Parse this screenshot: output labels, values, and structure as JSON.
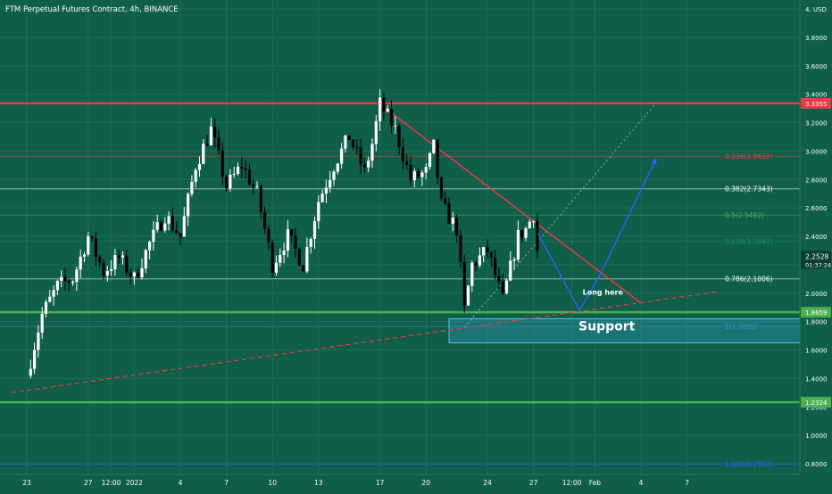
{
  "header": {
    "title": "FTM Perpetual Futures Contract, 4h, BINANCE"
  },
  "chart_data": {
    "type": "candlestick",
    "currency": "USD",
    "ylim": [
      0.68,
      4.08
    ],
    "yticks": [
      4.0,
      3.8,
      3.6,
      3.4,
      3.2,
      3.0,
      2.8,
      2.6,
      2.4,
      2.2,
      2.0,
      1.8,
      1.6,
      1.4,
      1.2,
      1.0,
      0.8
    ],
    "ytick_labels": [
      "4. USD",
      "3.8000",
      "3.6000",
      "3.4000",
      "3.2000",
      "3.0000",
      "2.8000",
      "2.6000",
      "2.4000",
      "2.2000",
      "2.0000",
      "1.8000",
      "1.6000",
      "1.4000",
      "1.2000",
      "1.0000",
      "0.8000"
    ],
    "xticks": [
      {
        "pos": 0,
        "label": "23"
      },
      {
        "pos": 4,
        "label": "27"
      },
      {
        "pos": 5.5,
        "label": "12:00"
      },
      {
        "pos": 7,
        "label": "2022"
      },
      {
        "pos": 10,
        "label": "4"
      },
      {
        "pos": 13,
        "label": "7"
      },
      {
        "pos": 16,
        "label": "10"
      },
      {
        "pos": 19,
        "label": "13"
      },
      {
        "pos": 23,
        "label": "17"
      },
      {
        "pos": 26,
        "label": "20"
      },
      {
        "pos": 30,
        "label": "24"
      },
      {
        "pos": 33,
        "label": "27"
      },
      {
        "pos": 35.5,
        "label": "12:00"
      },
      {
        "pos": 37,
        "label": "Feb"
      },
      {
        "pos": 40,
        "label": "4"
      },
      {
        "pos": 43,
        "label": "7"
      }
    ],
    "price_path": [
      [
        0,
        1.42
      ],
      [
        1,
        1.85
      ],
      [
        2,
        2.05
      ],
      [
        3,
        2.1
      ],
      [
        4,
        2.4
      ],
      [
        5,
        2.15
      ],
      [
        6,
        2.25
      ],
      [
        7,
        2.1
      ],
      [
        8,
        2.35
      ],
      [
        9,
        2.55
      ],
      [
        10,
        2.4
      ],
      [
        11,
        2.9
      ],
      [
        12,
        3.15
      ],
      [
        13,
        2.75
      ],
      [
        14,
        2.9
      ],
      [
        15,
        2.7
      ],
      [
        16,
        2.2
      ],
      [
        17,
        2.4
      ],
      [
        18,
        2.2
      ],
      [
        19,
        2.65
      ],
      [
        20,
        2.9
      ],
      [
        21,
        3.1
      ],
      [
        22,
        2.85
      ],
      [
        22.5,
        3.05
      ],
      [
        23,
        3.33
      ],
      [
        24,
        3.15
      ],
      [
        25,
        2.8
      ],
      [
        26,
        2.85
      ],
      [
        26.5,
        3.03
      ],
      [
        27,
        2.62
      ],
      [
        28,
        2.45
      ],
      [
        28.5,
        1.88
      ],
      [
        29,
        2.2
      ],
      [
        30,
        2.3
      ],
      [
        31,
        1.95
      ],
      [
        32,
        2.4
      ],
      [
        32.5,
        2.45
      ],
      [
        33,
        2.56
      ],
      [
        33.3,
        2.25
      ]
    ],
    "horizontal_levels": [
      {
        "price": 3.3355,
        "label": "3.3355",
        "color": "#f23645"
      },
      {
        "price": 1.8659,
        "label": "1.8659",
        "color": "#4caf50"
      },
      {
        "price": 1.2324,
        "label": "1.2324",
        "color": "#4caf50"
      }
    ],
    "last_price": {
      "value": "2.2528",
      "countdown": "01:37:24"
    },
    "fibonacci": [
      {
        "ratio": "0.236",
        "price": 2.9632,
        "label": "0.236(2.9632)",
        "color": "#f23645"
      },
      {
        "ratio": "0.382",
        "price": 2.7343,
        "label": "0.382(2.7343)",
        "color": "#ffffff"
      },
      {
        "ratio": "0.5",
        "price": 2.5492,
        "label": "0.5(2.5492)",
        "color": "#4caf50"
      },
      {
        "ratio": "0.618",
        "price": 2.3641,
        "label": "0.618(2.3641)",
        "color": "#1f8a70"
      },
      {
        "ratio": "0.786",
        "price": 2.1006,
        "label": "0.786(2.1006)",
        "color": "#ffffff"
      },
      {
        "ratio": "1",
        "price": 1.765,
        "label": "1(1.7650)",
        "color": "#4a8fe0"
      },
      {
        "ratio": "1.618",
        "price": 0.7957,
        "label": "1.618(0.7957)",
        "color": "#2962ff"
      }
    ],
    "support_zone": {
      "label": "Support",
      "price_top": 1.82,
      "price_bottom": 1.65,
      "x_start": 27.5,
      "x_end": 45
    },
    "annotations": [
      {
        "text": "Long here",
        "x": 36.2,
        "price": 1.99
      }
    ],
    "resistance_trendline": {
      "from": [
        23,
        3.33
      ],
      "to": [
        40,
        1.93
      ]
    },
    "support_trendline": {
      "from": [
        -1,
        1.3
      ],
      "to": [
        45,
        2.01
      ]
    },
    "fib_trendline": {
      "from": [
        28.5,
        1.76
      ],
      "to": [
        41,
        3.34
      ]
    },
    "projection_path": [
      [
        33.3,
        2.42
      ],
      [
        36,
        1.88
      ],
      [
        37.3,
        2.12
      ],
      [
        41,
        2.95
      ]
    ]
  }
}
